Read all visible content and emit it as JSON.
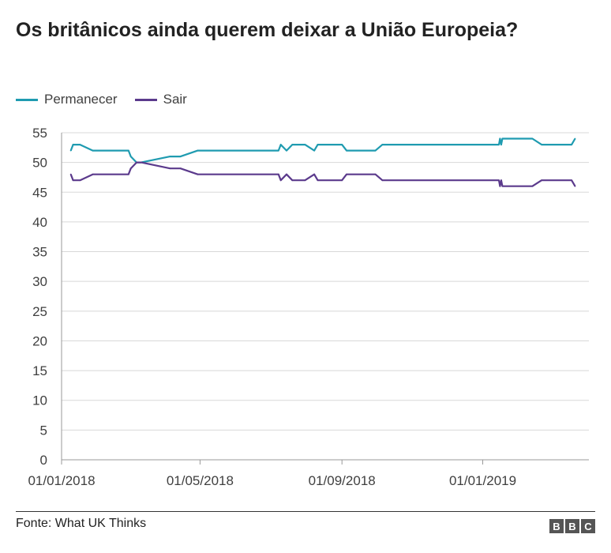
{
  "chart_data": {
    "type": "line",
    "title": "Os britânicos ainda querem deixar a União Europeia?",
    "xlabel": "",
    "ylabel": "",
    "ylim": [
      0,
      55
    ],
    "yticks": [
      0,
      5,
      10,
      15,
      20,
      25,
      30,
      35,
      40,
      45,
      50,
      55
    ],
    "xlim": [
      "2018-01-01",
      "2019-04-03"
    ],
    "xticks": [
      {
        "date": "2018-01-01",
        "label": "01/01/2018"
      },
      {
        "date": "2018-05-01",
        "label": "01/05/2018"
      },
      {
        "date": "2018-09-01",
        "label": "01/09/2018"
      },
      {
        "date": "2019-01-01",
        "label": "01/01/2019"
      }
    ],
    "grid": true,
    "legend": "top-left",
    "x": [
      "2018-01-09",
      "2018-01-11",
      "2018-01-17",
      "2018-01-28",
      "2018-02-28",
      "2018-03-02",
      "2018-03-07",
      "2018-03-11",
      "2018-04-05",
      "2018-04-14",
      "2018-04-29",
      "2018-07-08",
      "2018-07-10",
      "2018-07-15",
      "2018-07-20",
      "2018-07-31",
      "2018-08-08",
      "2018-08-11",
      "2018-09-01",
      "2018-09-05",
      "2018-09-30",
      "2018-10-06",
      "2019-01-15",
      "2019-01-16",
      "2019-01-17",
      "2019-01-18",
      "2019-02-13",
      "2019-02-21",
      "2019-03-19",
      "2019-03-22"
    ],
    "series": [
      {
        "name": "Permanecer",
        "color": "#1f9bb0",
        "values": [
          52,
          53,
          53,
          52,
          52,
          51,
          50,
          50,
          51,
          51,
          52,
          52,
          53,
          52,
          53,
          53,
          52,
          53,
          53,
          52,
          52,
          53,
          53,
          54,
          53,
          54,
          54,
          53,
          53,
          54
        ]
      },
      {
        "name": "Sair",
        "color": "#5b3a8c",
        "values": [
          48,
          47,
          47,
          48,
          48,
          49,
          50,
          50,
          49,
          49,
          48,
          48,
          47,
          48,
          47,
          47,
          48,
          47,
          47,
          48,
          48,
          47,
          47,
          46,
          47,
          46,
          46,
          47,
          47,
          46
        ]
      }
    ]
  },
  "source": "Fonte: What UK Thinks",
  "logo": [
    "B",
    "B",
    "C"
  ]
}
